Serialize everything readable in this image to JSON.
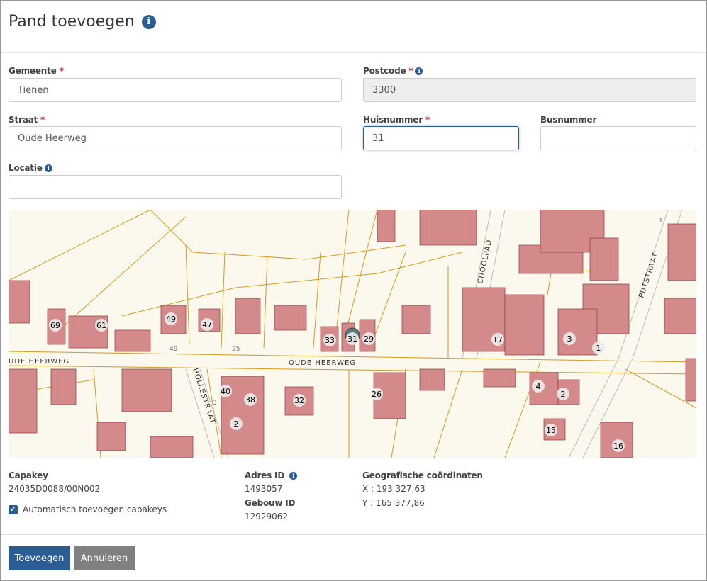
{
  "title": "Pand toevoegen",
  "form": {
    "gemeente": {
      "label": "Gemeente",
      "value": "Tienen"
    },
    "postcode": {
      "label": "Postcode",
      "value": "3300"
    },
    "straat": {
      "label": "Straat",
      "value": "Oude Heerweg"
    },
    "huisnummer": {
      "label": "Huisnummer",
      "value": "31"
    },
    "busnummer": {
      "label": "Busnummer",
      "value": ""
    },
    "locatie": {
      "label": "Locatie",
      "value": ""
    },
    "required_mark": "*"
  },
  "map": {
    "streets": [
      "UDE  HEERWEG",
      "OUDE  HEERWEG",
      "HOLLESTRAAT",
      "CHOOLPAD",
      "PUTSTRAAT"
    ],
    "house_numbers": [
      "69",
      "61",
      "49",
      "47",
      "33",
      "31",
      "29",
      "17",
      "3",
      "1",
      "40",
      "38",
      "32",
      "26",
      "4",
      "2",
      "15",
      "16",
      "2"
    ],
    "parcel_numbers": [
      "49",
      "25",
      "3",
      "1"
    ],
    "colors": {
      "building": "#d4898b",
      "parcel_line": "#d89a1a",
      "background": "#fbf8ee",
      "selected": "#5a7a78"
    }
  },
  "details": {
    "capakey_label": "Capakey",
    "capakey": "24035D0088/00N002",
    "auto_capakeys": "Automatisch toevoegen capakeys",
    "auto_checked": true,
    "adres_id_label": "Adres ID",
    "adres_id": "1493057",
    "gebouw_id_label": "Gebouw ID",
    "gebouw_id": "12929062",
    "coords_label": "Geografische coördinaten",
    "x": "X : 193 327,63",
    "y": "Y : 165 377,86"
  },
  "buttons": {
    "add": "Toevoegen",
    "cancel": "Annuleren"
  },
  "colors": {
    "primary": "#2b5c94",
    "secondary": "#808080"
  }
}
